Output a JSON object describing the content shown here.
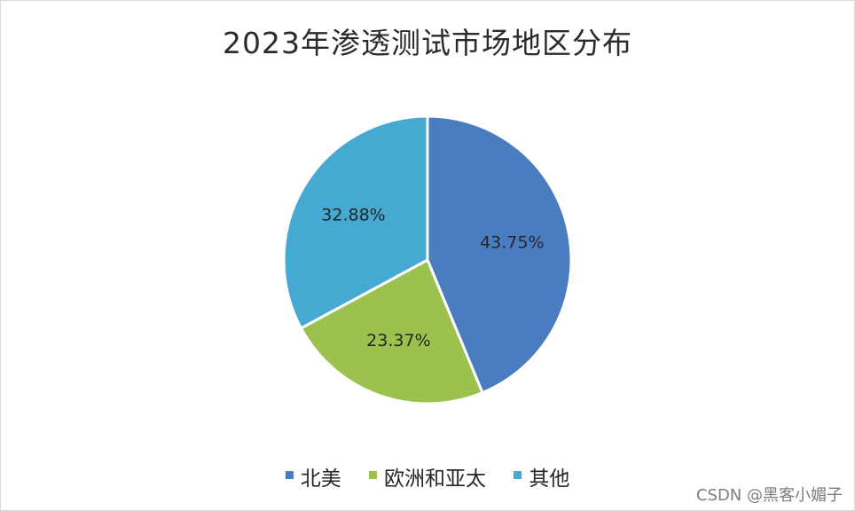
{
  "chart_data": {
    "type": "pie",
    "title": "2023年渗透测试市场地区分布",
    "categories": [
      "北美",
      "欧洲和亚太",
      "其他"
    ],
    "values": [
      43.75,
      23.37,
      32.88
    ],
    "labels": [
      "43.75%",
      "23.37%",
      "32.88%"
    ],
    "colors": [
      "#4a7dc0",
      "#9bc24f",
      "#46a9d2"
    ],
    "legend": "bottom",
    "start_angle_deg": 0,
    "direction": "clockwise"
  },
  "watermark": "CSDN @黑客小媚子",
  "colors": {
    "background": "#ffffff",
    "slice_border": "#ffffff",
    "label_text": "#262626"
  }
}
